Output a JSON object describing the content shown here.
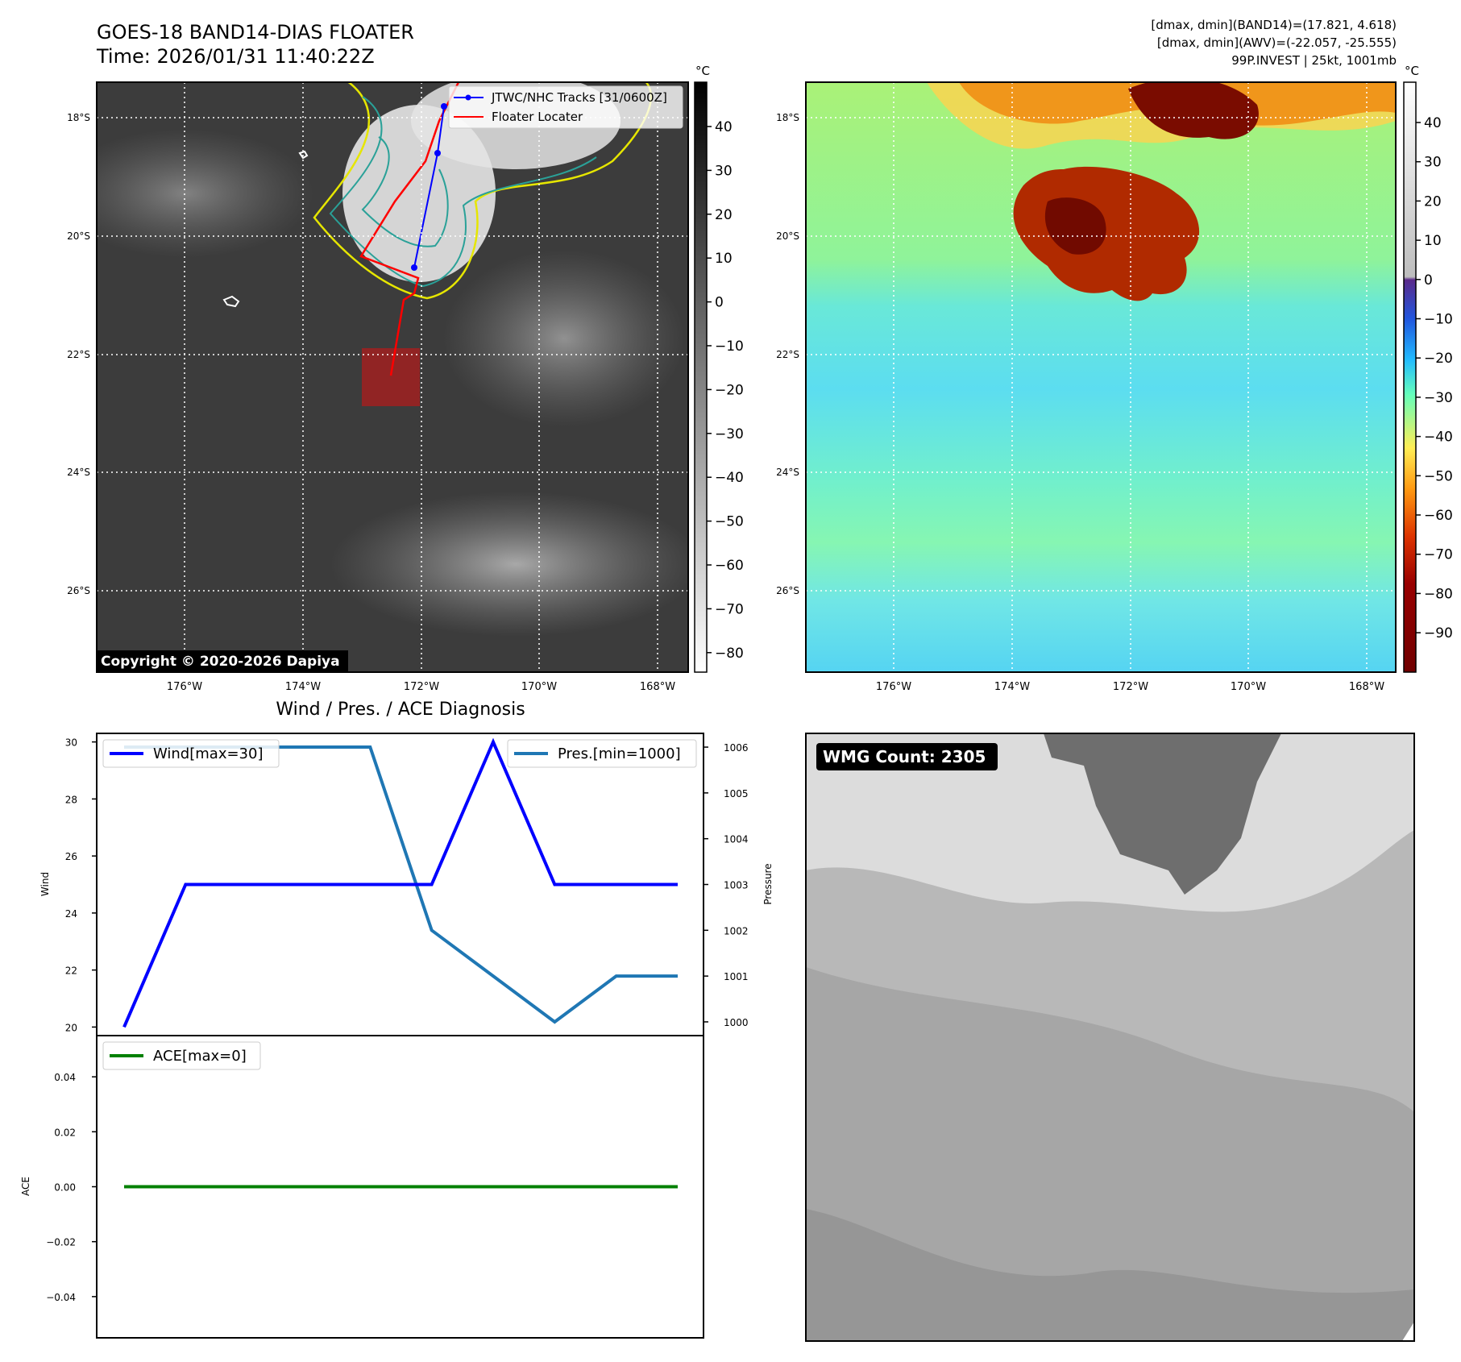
{
  "header": {
    "title": "GOES-18 BAND14-DIAS FLOATER",
    "time": "Time: 2026/01/31 11:40:22Z",
    "info_lines": [
      "[dmax, dmin](BAND14)=(17.821, 4.618)",
      "[dmax, dmin](AWV)=(-22.057, -25.555)",
      "99P.INVEST | 25kt, 1001mb"
    ]
  },
  "map": {
    "lat_labels": [
      "18°S",
      "20°S",
      "22°S",
      "24°S",
      "26°S"
    ],
    "lon_labels": [
      "176°W",
      "174°W",
      "172°W",
      "170°W",
      "168°W"
    ],
    "legend": {
      "tracks": "JTWC/NHC Tracks [31/0600Z]",
      "locater": "Floater Locater"
    },
    "copyright": "Copyright © 2020-2026 Dapiya",
    "track_color": "#0000ff",
    "locater_color": "#ff0000"
  },
  "colorbar_left": {
    "unit": "°C",
    "ticks": [
      "40",
      "30",
      "20",
      "10",
      "0",
      "−10",
      "−20",
      "−30",
      "−40",
      "−50",
      "−60",
      "−70",
      "−80"
    ]
  },
  "colorbar_right": {
    "unit": "°C",
    "ticks": [
      "40",
      "30",
      "20",
      "10",
      "0",
      "−10",
      "−20",
      "−30",
      "−40",
      "−50",
      "−60",
      "−70",
      "−80",
      "−90"
    ]
  },
  "wmg": {
    "label": "WMG Count: 2305"
  },
  "chart_data": [
    {
      "type": "line",
      "title": "Wind / Pres. / ACE Diagnosis",
      "x": [
        0,
        1,
        2,
        3,
        4,
        5,
        6,
        7,
        8,
        9
      ],
      "series": [
        {
          "name": "Wind[max=30]",
          "axis": "left",
          "color": "#0000ff",
          "values": [
            20,
            25,
            25,
            25,
            25,
            25,
            30,
            25,
            25,
            25
          ]
        },
        {
          "name": "Pres.[min=1000]",
          "axis": "right",
          "color": "#1f77b4",
          "values": [
            1006,
            1006,
            1006,
            1006,
            1006,
            1002,
            1001,
            1000,
            1001,
            1001
          ]
        }
      ],
      "ylabel": "Wind",
      "ylim": [
        19.7,
        30.3
      ],
      "y_ticks": [
        20,
        22,
        24,
        26,
        28,
        30
      ],
      "y2label": "Pressure",
      "y2lim": [
        999.7,
        1006.3
      ],
      "y2_ticks": [
        1000,
        1001,
        1002,
        1003,
        1004,
        1005,
        1006
      ],
      "legend_left": "top-left",
      "legend_right": "top-right",
      "grid": false
    },
    {
      "type": "line",
      "x": [
        0,
        9
      ],
      "series": [
        {
          "name": "ACE[max=0]",
          "color": "#008000",
          "values": [
            0,
            0
          ]
        }
      ],
      "ylabel": "ACE",
      "ylim": [
        -0.055,
        0.055
      ],
      "y_ticks": [
        0.04,
        0.02,
        0.0,
        -0.02,
        -0.04
      ],
      "y_tick_labels": [
        "0.04",
        "0.02",
        "0.00",
        "−0.02",
        "−0.04"
      ],
      "legend": "top-left",
      "grid": false
    }
  ]
}
